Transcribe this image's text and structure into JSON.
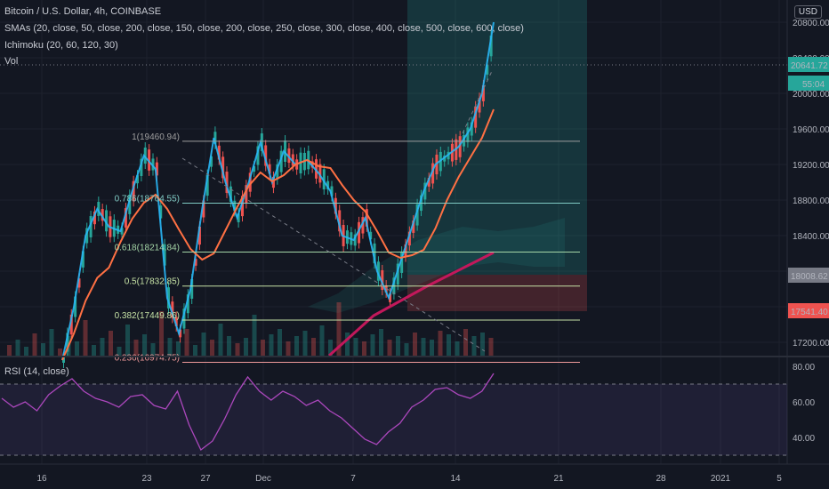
{
  "header": {
    "symbol_line": "Bitcoin / U.S. Dollar, 4h, COINBASE",
    "smas_line": "SMAs (20, close, 50, close, 200, close, 150, close, 200, close, 250, close, 300, close, 400, close, 500, close, 600, close)",
    "ichimoku_line": "Ichimoku (20, 60, 120, 30)",
    "vol_line": "Vol",
    "currency": "USD",
    "rsi_line": "RSI (14, close)"
  },
  "chart_data": [
    {
      "type": "line",
      "title": "Bitcoin / U.S. Dollar, 4h, COINBASE",
      "xlabel": "",
      "ylabel": "",
      "x_ticks": [
        "16",
        "23",
        "27",
        "Dec",
        "7",
        "14",
        "21",
        "28",
        "2021",
        "5"
      ],
      "y_ticks": [
        17200,
        17600,
        18000,
        18400,
        18800,
        19200,
        19600,
        20000,
        20400,
        20800
      ],
      "ylim": [
        17050,
        21050
      ],
      "grid": true,
      "price_labels": [
        {
          "value": "20641.72",
          "color": "#26a69a"
        },
        {
          "value": "55:04",
          "color": "#26a69a"
        },
        {
          "value": "18008.62",
          "color": "#787b86"
        },
        {
          "value": "17541.40",
          "color": "#ef5350"
        }
      ],
      "fib_levels": [
        {
          "label": "1(19460.94)",
          "value": 19460.94
        },
        {
          "label": "0.786(18764.55)",
          "value": 18764.55
        },
        {
          "label": "0.618(18214.84)",
          "value": 18214.84
        },
        {
          "label": "0.5(17832.85)",
          "value": 17832.85
        },
        {
          "label": "0.382(17449.86)",
          "value": 17449.86
        },
        {
          "label": "0.236(16974.75)",
          "value": 16974.75
        }
      ],
      "series": [
        {
          "name": "Price",
          "values": [
            17000,
            17600,
            18400,
            18700,
            18500,
            18450,
            18900,
            19300,
            19150,
            17700,
            17300,
            17800,
            18700,
            19500,
            19000,
            18600,
            19000,
            19450,
            19000,
            19350,
            19200,
            19250,
            19100,
            18900,
            18400,
            18350,
            18600,
            18000,
            17700,
            18100,
            18500,
            18900,
            19200,
            19300,
            19400,
            19600,
            20000,
            20800
          ]
        }
      ]
    },
    {
      "type": "line",
      "title": "RSI (14, close)",
      "y_ticks": [
        40,
        60,
        80
      ],
      "ylim": [
        25,
        85
      ],
      "bands": [
        30,
        70
      ],
      "series": [
        {
          "name": "RSI",
          "values": [
            62,
            57,
            60,
            55,
            64,
            69,
            73,
            66,
            62,
            60,
            57,
            63,
            64,
            58,
            56,
            66,
            47,
            33,
            38,
            50,
            64,
            74,
            66,
            61,
            66,
            63,
            58,
            61,
            55,
            51,
            45,
            39,
            36,
            43,
            48,
            57,
            61,
            67,
            68,
            64,
            62,
            66,
            76
          ]
        }
      ]
    }
  ]
}
